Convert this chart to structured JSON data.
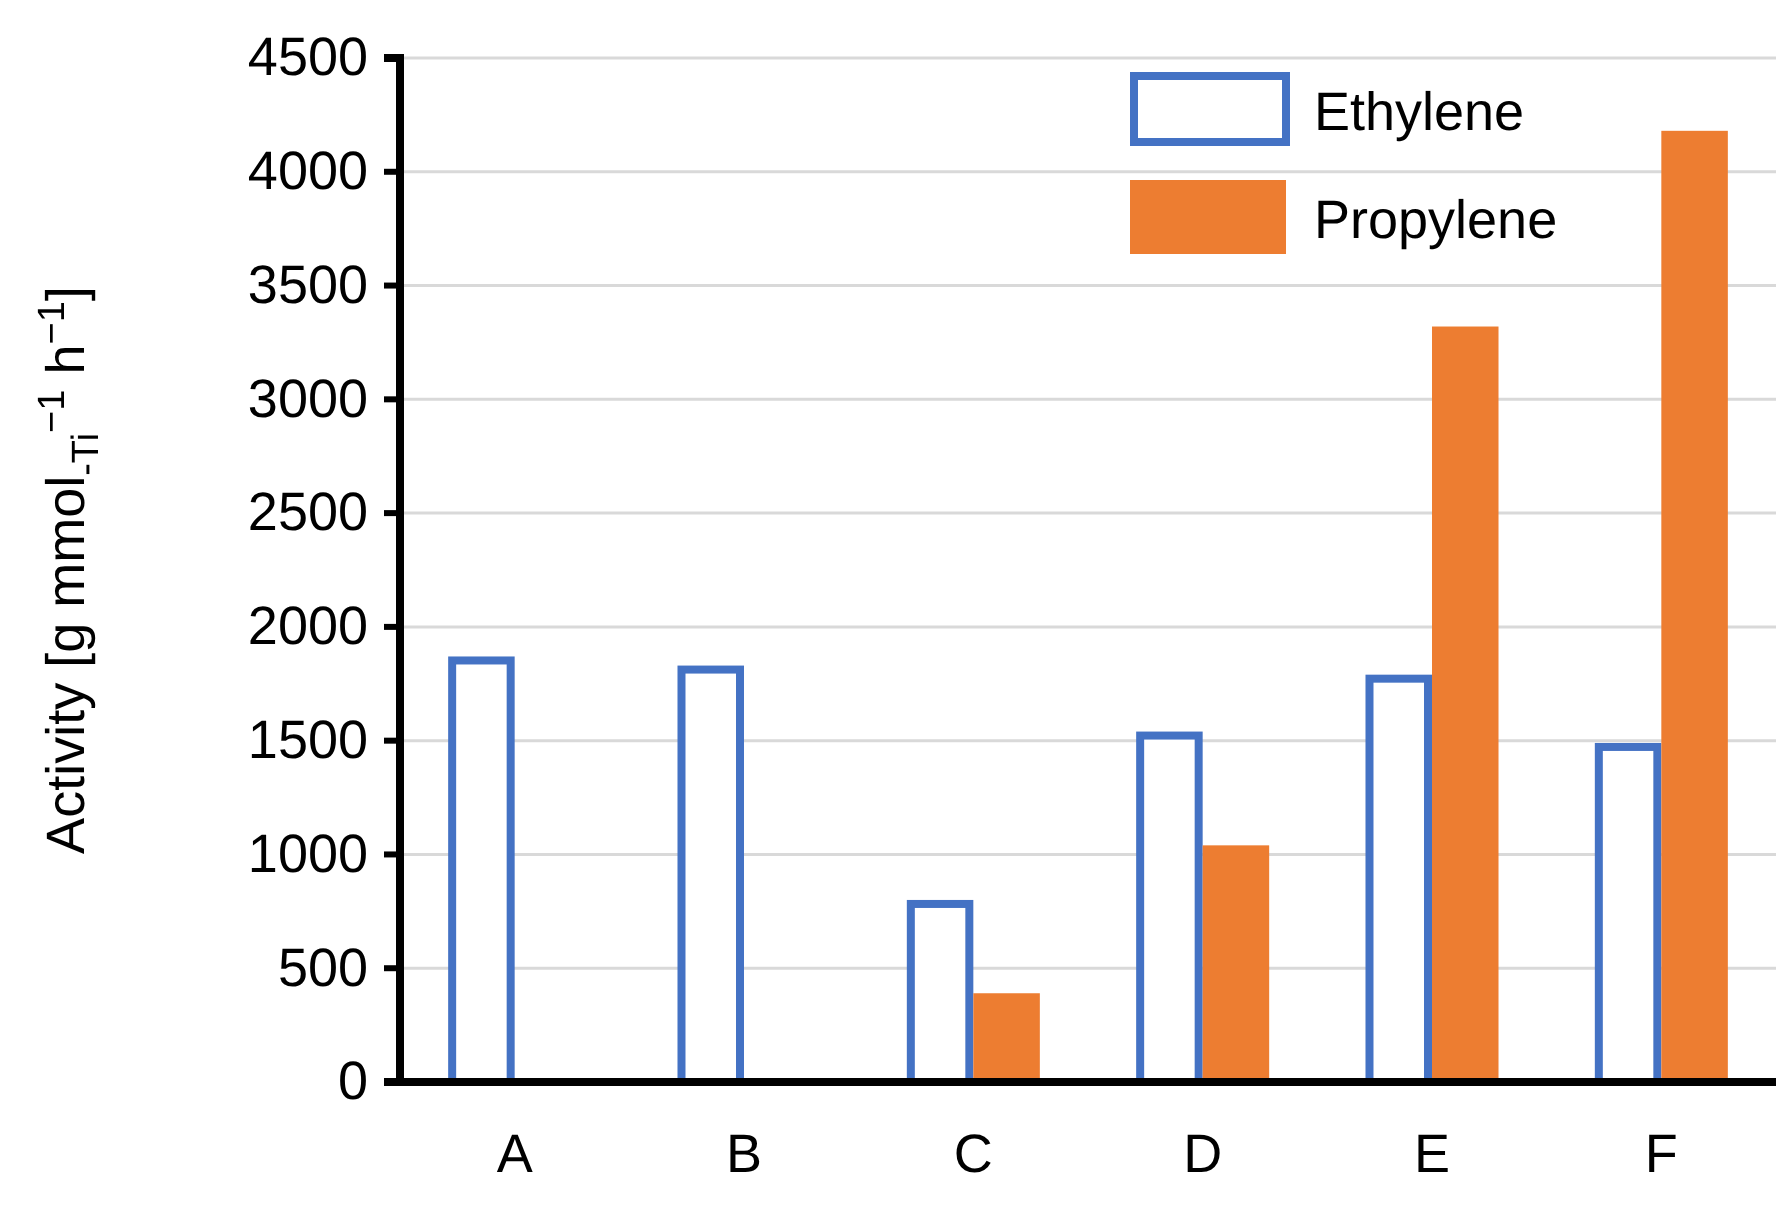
{
  "chart_data": {
    "type": "bar",
    "ylabel": "Activity [g mmol$_{-Ti}$$^{−1}$ h$^{−1}$]",
    "categories": [
      "A",
      "B",
      "C",
      "D",
      "E",
      "F"
    ],
    "series": [
      {
        "name": "Ethylene",
        "color": "#4472c4",
        "values": [
          1870,
          1830,
          800,
          1540,
          1790,
          1490
        ]
      },
      {
        "name": "Propylene",
        "color": "#ed7d31",
        "values": [
          null,
          null,
          390,
          1040,
          3320,
          4180
        ]
      }
    ],
    "ylim": [
      0,
      4500
    ],
    "yticks": [
      0,
      500,
      1000,
      1500,
      2000,
      2500,
      3000,
      3500,
      4000,
      4500
    ],
    "grid": "y",
    "legend": "top right"
  }
}
